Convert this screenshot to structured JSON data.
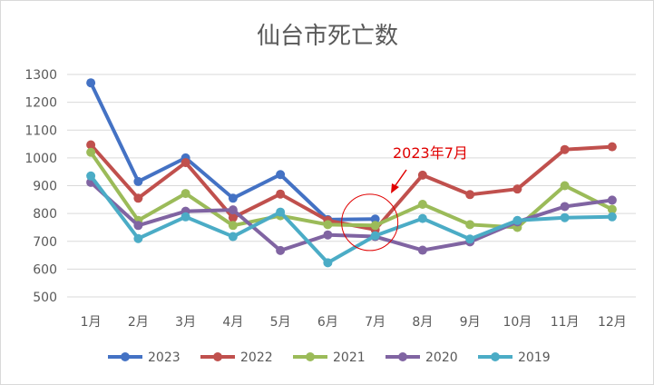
{
  "chart_data": {
    "type": "line",
    "title": "仙台市死亡数",
    "xlabel": "",
    "ylabel": "",
    "categories": [
      "1月",
      "2月",
      "3月",
      "4月",
      "5月",
      "6月",
      "7月",
      "8月",
      "9月",
      "10月",
      "11月",
      "12月"
    ],
    "yticks": [
      "500",
      "600",
      "700",
      "800",
      "900",
      "1000",
      "1100",
      "1200",
      "1300"
    ],
    "ylim": [
      500,
      1300
    ],
    "grid": true,
    "legend_position": "bottom",
    "series": [
      {
        "name": "2023",
        "color": "#4472c4",
        "values": [
          1270,
          915,
          1000,
          855,
          940,
          778,
          780,
          null,
          null,
          null,
          null,
          null
        ]
      },
      {
        "name": "2022",
        "color": "#c0504d",
        "values": [
          1047,
          855,
          983,
          785,
          870,
          775,
          742,
          938,
          868,
          888,
          1030,
          1040
        ]
      },
      {
        "name": "2021",
        "color": "#9bbb59",
        "values": [
          1020,
          775,
          872,
          757,
          792,
          760,
          757,
          833,
          760,
          750,
          900,
          815
        ]
      },
      {
        "name": "2020",
        "color": "#8064a2",
        "values": [
          912,
          757,
          808,
          813,
          667,
          723,
          717,
          668,
          698,
          770,
          825,
          848
        ]
      },
      {
        "name": "2019",
        "color": "#4bacc6",
        "values": [
          935,
          710,
          788,
          717,
          805,
          623,
          720,
          782,
          708,
          775,
          785,
          788
        ]
      }
    ],
    "annotation": {
      "text": "2023年7月",
      "color": "#e00000",
      "category_index": 6,
      "value": 768
    }
  }
}
